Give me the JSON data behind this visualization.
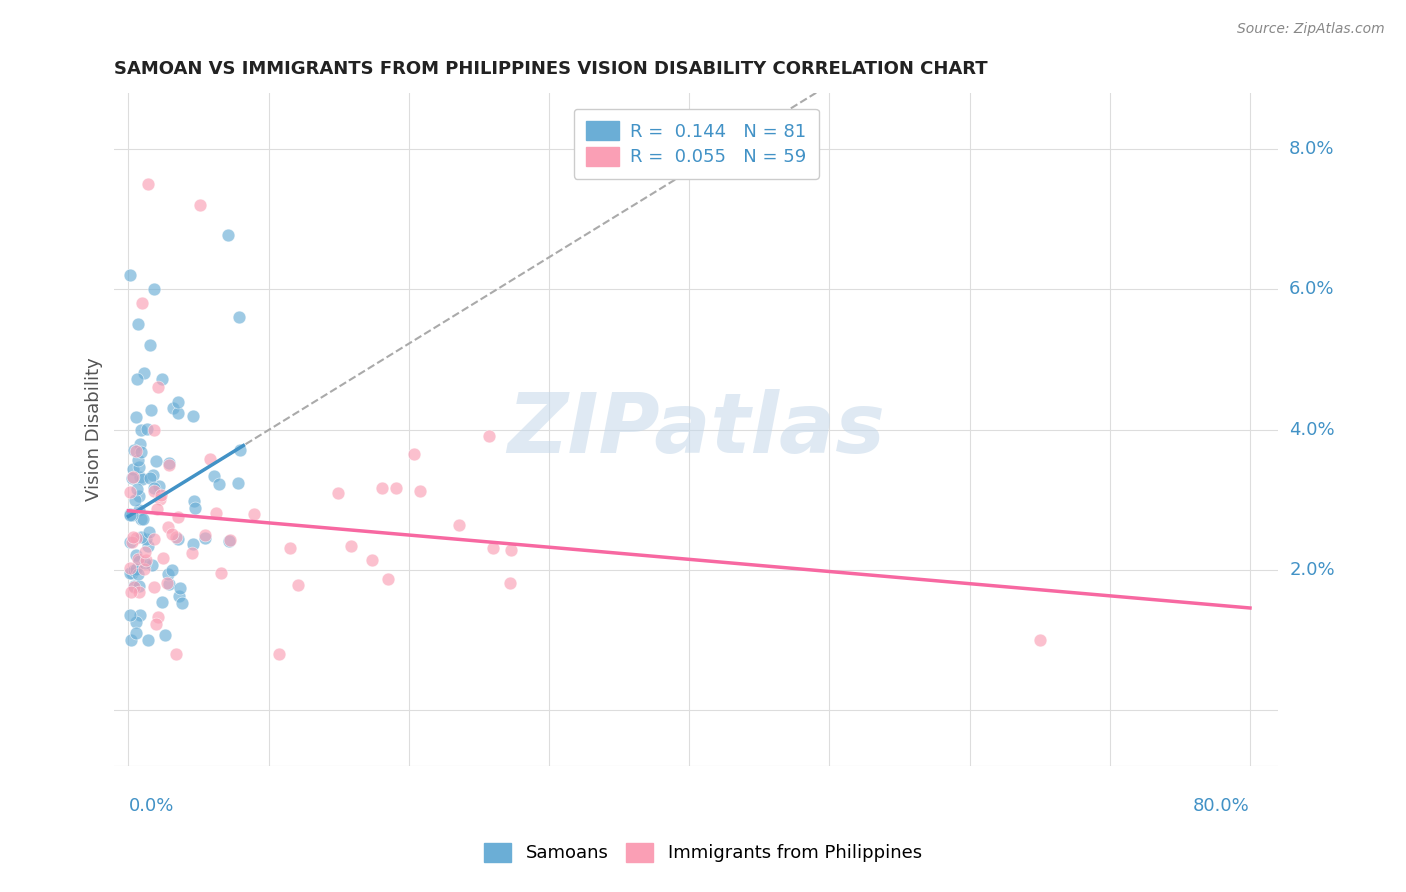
{
  "title": "SAMOAN VS IMMIGRANTS FROM PHILIPPINES VISION DISABILITY CORRELATION CHART",
  "source": "Source: ZipAtlas.com",
  "ylabel": "Vision Disability",
  "watermark": "ZIPatlas",
  "legend": {
    "R1": 0.144,
    "N1": 81,
    "R2": 0.055,
    "N2": 59
  },
  "scatter_color_blue": "#6baed6",
  "scatter_color_pink": "#fa9fb5",
  "trend_color_blue": "#4292c6",
  "trend_color_pink": "#f768a1",
  "trend_dashed_color": "#aaaaaa",
  "grid_color": "#dddddd",
  "axis_label_color": "#4292c6",
  "title_color": "#222222",
  "source_color": "#888888",
  "ytick_vals": [
    0.0,
    0.02,
    0.04,
    0.06,
    0.08
  ],
  "ytick_labels": [
    "",
    "2.0%",
    "4.0%",
    "6.0%",
    "8.0%"
  ],
  "xlim": [
    -0.01,
    0.82
  ],
  "ylim": [
    -0.008,
    0.088
  ]
}
